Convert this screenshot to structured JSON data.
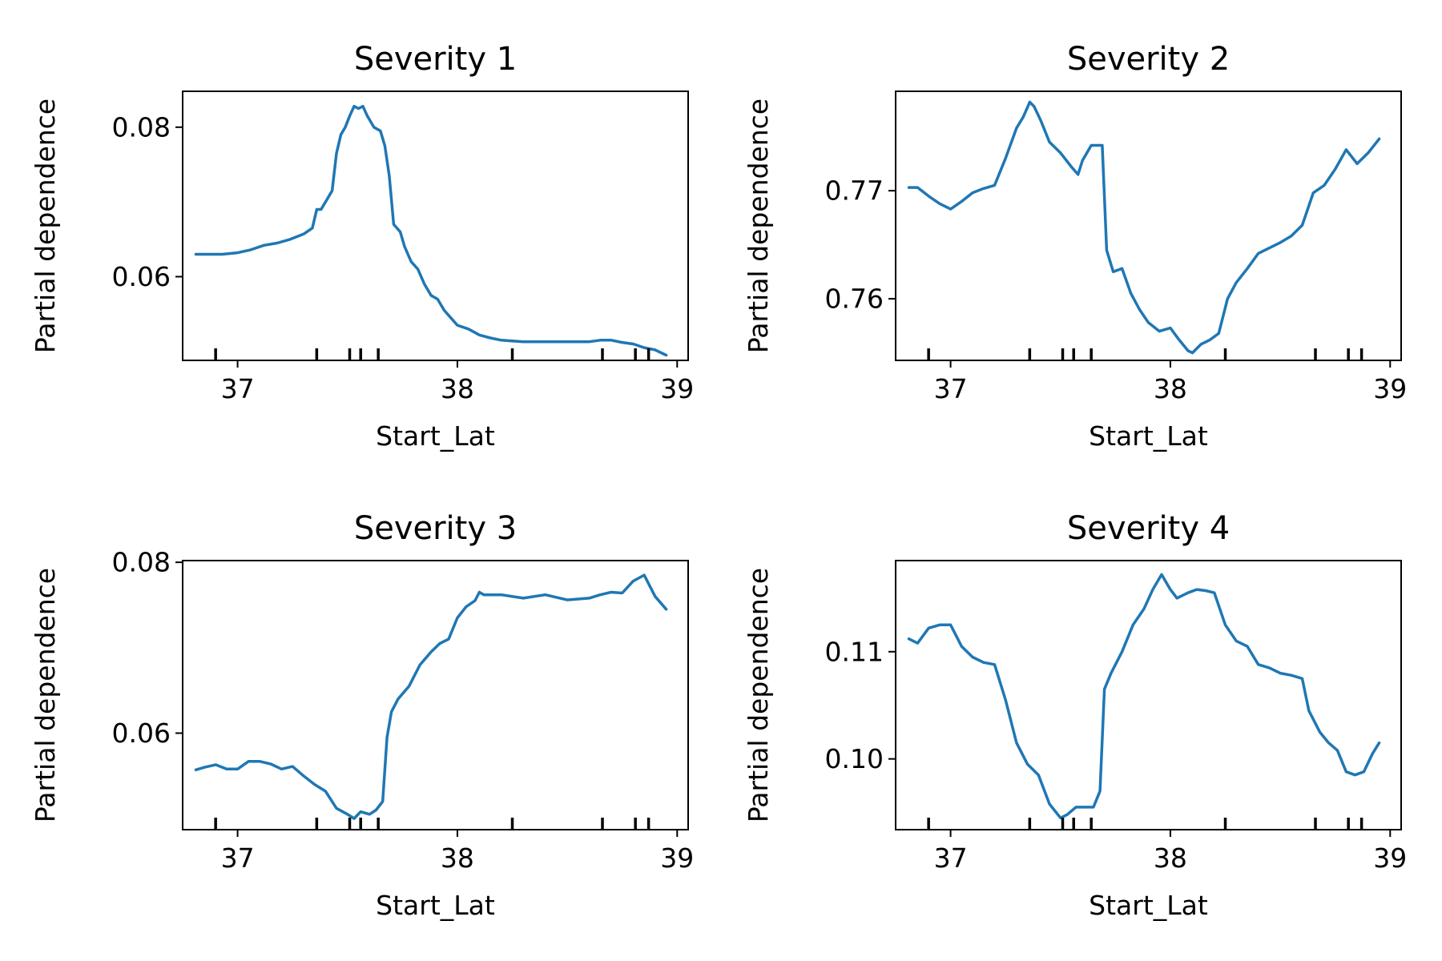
{
  "chart_data": [
    {
      "type": "line",
      "title": "Severity 1",
      "xlabel": "Start_Lat",
      "ylabel": "Partial dependence",
      "xlim": [
        36.75,
        39.05
      ],
      "ylim": [
        0.0488,
        0.0848
      ],
      "xticks": [
        37,
        38,
        39
      ],
      "yticks": [
        0.06,
        0.08
      ],
      "ytick_labels": [
        "0.06",
        "0.08"
      ],
      "deciles": [
        36.9,
        37.36,
        37.51,
        37.56,
        37.64,
        38.25,
        38.66,
        38.81,
        38.87
      ],
      "series": [
        {
          "name": "Severity 1",
          "color": "#1f77b4",
          "x": [
            36.81,
            36.87,
            36.93,
            37.0,
            37.06,
            37.12,
            37.18,
            37.24,
            37.3,
            37.34,
            37.36,
            37.38,
            37.41,
            37.43,
            37.45,
            37.47,
            37.49,
            37.51,
            37.53,
            37.55,
            37.57,
            37.59,
            37.62,
            37.65,
            37.67,
            37.69,
            37.71,
            37.74,
            37.76,
            37.79,
            37.82,
            37.85,
            37.88,
            37.91,
            37.94,
            37.97,
            38.0,
            38.05,
            38.1,
            38.15,
            38.2,
            38.3,
            38.4,
            38.5,
            38.6,
            38.65,
            38.7,
            38.75,
            38.8,
            38.85,
            38.9,
            38.95
          ],
          "y": [
            0.063,
            0.063,
            0.063,
            0.0632,
            0.0636,
            0.0642,
            0.0645,
            0.065,
            0.0657,
            0.0665,
            0.069,
            0.069,
            0.0705,
            0.0715,
            0.0765,
            0.079,
            0.08,
            0.0815,
            0.0828,
            0.0825,
            0.0828,
            0.0815,
            0.08,
            0.0795,
            0.0775,
            0.0735,
            0.067,
            0.066,
            0.064,
            0.062,
            0.061,
            0.059,
            0.0575,
            0.057,
            0.0555,
            0.0545,
            0.0535,
            0.053,
            0.0522,
            0.0518,
            0.0515,
            0.0513,
            0.0513,
            0.0513,
            0.0513,
            0.0515,
            0.0515,
            0.0512,
            0.051,
            0.0505,
            0.0502,
            0.0495
          ]
        }
      ]
    },
    {
      "type": "line",
      "title": "Severity 2",
      "xlabel": "Start_Lat",
      "ylabel": "Partial dependence",
      "xlim": [
        36.75,
        39.05
      ],
      "ylim": [
        0.7543,
        0.7792
      ],
      "xticks": [
        37,
        38,
        39
      ],
      "yticks": [
        0.76,
        0.77
      ],
      "ytick_labels": [
        "0.76",
        "0.77"
      ],
      "deciles": [
        36.9,
        37.36,
        37.51,
        37.56,
        37.64,
        38.25,
        38.66,
        38.81,
        38.87
      ],
      "series": [
        {
          "name": "Severity 2",
          "color": "#1f77b4",
          "x": [
            36.81,
            36.85,
            36.9,
            36.95,
            37.0,
            37.05,
            37.1,
            37.15,
            37.2,
            37.25,
            37.3,
            37.33,
            37.36,
            37.38,
            37.41,
            37.45,
            37.5,
            37.55,
            37.58,
            37.6,
            37.64,
            37.67,
            37.69,
            37.71,
            37.74,
            37.78,
            37.82,
            37.86,
            37.9,
            37.95,
            38.0,
            38.04,
            38.08,
            38.1,
            38.14,
            38.18,
            38.22,
            38.26,
            38.3,
            38.35,
            38.4,
            38.45,
            38.5,
            38.55,
            38.6,
            38.65,
            38.7,
            38.75,
            38.8,
            38.85,
            38.9,
            38.95
          ],
          "y": [
            0.7703,
            0.7703,
            0.7695,
            0.7688,
            0.7683,
            0.769,
            0.7698,
            0.7702,
            0.7705,
            0.773,
            0.7758,
            0.7768,
            0.7782,
            0.7778,
            0.7765,
            0.7745,
            0.7735,
            0.7722,
            0.7715,
            0.7728,
            0.7742,
            0.7742,
            0.7742,
            0.7645,
            0.7625,
            0.7628,
            0.7605,
            0.759,
            0.7578,
            0.757,
            0.7573,
            0.7562,
            0.7552,
            0.755,
            0.7558,
            0.7562,
            0.7568,
            0.76,
            0.7615,
            0.7628,
            0.7642,
            0.7647,
            0.7652,
            0.7658,
            0.7668,
            0.7698,
            0.7705,
            0.772,
            0.7738,
            0.7725,
            0.7735,
            0.7748
          ]
        }
      ]
    },
    {
      "type": "line",
      "title": "Severity 3",
      "xlabel": "Start_Lat",
      "ylabel": "Partial dependence",
      "xlim": [
        36.75,
        39.05
      ],
      "ylim": [
        0.0487,
        0.0802
      ],
      "xticks": [
        37,
        38,
        39
      ],
      "yticks": [
        0.06,
        0.08
      ],
      "ytick_labels": [
        "0.06",
        "0.08"
      ],
      "deciles": [
        36.9,
        37.36,
        37.51,
        37.56,
        37.64,
        38.25,
        38.66,
        38.81,
        38.87
      ],
      "series": [
        {
          "name": "Severity 3",
          "color": "#1f77b4",
          "x": [
            36.81,
            36.85,
            36.9,
            36.95,
            37.0,
            37.05,
            37.1,
            37.15,
            37.2,
            37.25,
            37.3,
            37.35,
            37.4,
            37.45,
            37.5,
            37.53,
            37.56,
            37.6,
            37.63,
            37.66,
            37.68,
            37.7,
            37.73,
            37.78,
            37.83,
            37.88,
            37.92,
            37.96,
            38.0,
            38.04,
            38.08,
            38.1,
            38.12,
            38.2,
            38.3,
            38.4,
            38.5,
            38.6,
            38.65,
            38.7,
            38.75,
            38.8,
            38.85,
            38.9,
            38.95
          ],
          "y": [
            0.0557,
            0.056,
            0.0563,
            0.0558,
            0.0558,
            0.0567,
            0.0567,
            0.0564,
            0.0558,
            0.0561,
            0.055,
            0.054,
            0.0532,
            0.0512,
            0.0505,
            0.05,
            0.0508,
            0.0505,
            0.051,
            0.052,
            0.0595,
            0.0625,
            0.064,
            0.0655,
            0.068,
            0.0695,
            0.0705,
            0.071,
            0.0735,
            0.0748,
            0.0755,
            0.0765,
            0.0762,
            0.0762,
            0.0758,
            0.0762,
            0.0756,
            0.0758,
            0.0762,
            0.0765,
            0.0764,
            0.0778,
            0.0785,
            0.076,
            0.0745
          ]
        }
      ]
    },
    {
      "type": "line",
      "title": "Severity 4",
      "xlabel": "Start_Lat",
      "ylabel": "Partial dependence",
      "xlim": [
        36.75,
        39.05
      ],
      "ylim": [
        0.0934,
        0.1185
      ],
      "xticks": [
        37,
        38,
        39
      ],
      "yticks": [
        0.1,
        0.11
      ],
      "ytick_labels": [
        "0.10",
        "0.11"
      ],
      "deciles": [
        36.9,
        37.36,
        37.51,
        37.56,
        37.64,
        38.25,
        38.66,
        38.81,
        38.87
      ],
      "series": [
        {
          "name": "Severity 4",
          "color": "#1f77b4",
          "x": [
            36.81,
            36.85,
            36.9,
            36.95,
            37.0,
            37.05,
            37.1,
            37.15,
            37.2,
            37.25,
            37.3,
            37.35,
            37.4,
            37.45,
            37.5,
            37.53,
            37.57,
            37.6,
            37.65,
            37.68,
            37.7,
            37.73,
            37.78,
            37.83,
            37.88,
            37.92,
            37.96,
            38.0,
            38.03,
            38.08,
            38.12,
            38.16,
            38.2,
            38.25,
            38.3,
            38.35,
            38.4,
            38.45,
            38.5,
            38.55,
            38.6,
            38.63,
            38.68,
            38.72,
            38.76,
            38.8,
            38.84,
            38.88,
            38.92,
            38.95
          ],
          "y": [
            0.1112,
            0.1108,
            0.1122,
            0.1125,
            0.1125,
            0.1105,
            0.1095,
            0.109,
            0.1088,
            0.1055,
            0.1015,
            0.0995,
            0.0985,
            0.0958,
            0.0945,
            0.0948,
            0.0955,
            0.0955,
            0.0955,
            0.097,
            0.1065,
            0.108,
            0.11,
            0.1125,
            0.114,
            0.1158,
            0.1172,
            0.1158,
            0.115,
            0.1155,
            0.1158,
            0.1157,
            0.1155,
            0.1125,
            0.111,
            0.1105,
            0.1088,
            0.1085,
            0.108,
            0.1078,
            0.1075,
            0.1045,
            0.1025,
            0.1015,
            0.1008,
            0.0988,
            0.0985,
            0.0988,
            0.1005,
            0.1015
          ]
        }
      ]
    }
  ]
}
